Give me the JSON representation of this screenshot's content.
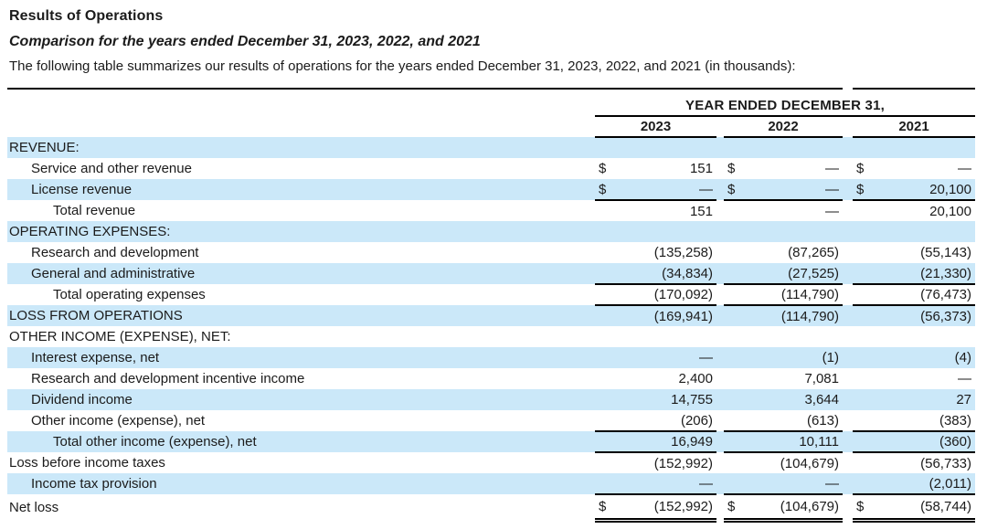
{
  "page": {
    "title": "Results of Operations",
    "subtitle": "Comparison for the years ended December 31, 2023, 2022, and 2021",
    "intro": "The following table summarizes our results of operations for the years ended December 31, 2023, 2022, and 2021 (in thousands):"
  },
  "colors": {
    "row_highlight": "#cbe8f9"
  },
  "table": {
    "group_header": "YEAR ENDED DECEMBER 31,",
    "columns": [
      "2023",
      "2022",
      "2021"
    ],
    "currency_symbol": "$",
    "rows": [
      {
        "label": "REVENUE:",
        "indent": 0,
        "highlight": true,
        "dollar": false,
        "rule": "none",
        "values": [
          "",
          "",
          ""
        ]
      },
      {
        "label": "Service and other revenue",
        "indent": 1,
        "highlight": false,
        "dollar": true,
        "rule": "none",
        "values": [
          "151",
          "—",
          "—"
        ]
      },
      {
        "label": "License revenue",
        "indent": 1,
        "highlight": true,
        "dollar": true,
        "rule": "single",
        "values": [
          "—",
          "—",
          "20,100"
        ]
      },
      {
        "label": "Total revenue",
        "indent": 2,
        "highlight": false,
        "dollar": false,
        "rule": "none",
        "values": [
          "151",
          "—",
          "20,100"
        ]
      },
      {
        "label": "OPERATING EXPENSES:",
        "indent": 0,
        "highlight": true,
        "dollar": false,
        "rule": "none",
        "values": [
          "",
          "",
          ""
        ]
      },
      {
        "label": "Research and development",
        "indent": 1,
        "highlight": false,
        "dollar": false,
        "rule": "none",
        "values": [
          "(135,258)",
          "(87,265)",
          "(55,143)"
        ]
      },
      {
        "label": "General and administrative",
        "indent": 1,
        "highlight": true,
        "dollar": false,
        "rule": "single",
        "values": [
          "(34,834)",
          "(27,525)",
          "(21,330)"
        ]
      },
      {
        "label": "Total operating expenses",
        "indent": 2,
        "highlight": false,
        "dollar": false,
        "rule": "single",
        "values": [
          "(170,092)",
          "(114,790)",
          "(76,473)"
        ]
      },
      {
        "label": "LOSS FROM OPERATIONS",
        "indent": 0,
        "highlight": true,
        "dollar": false,
        "rule": "none",
        "values": [
          "(169,941)",
          "(114,790)",
          "(56,373)"
        ]
      },
      {
        "label": "OTHER INCOME (EXPENSE), NET:",
        "indent": 0,
        "highlight": false,
        "dollar": false,
        "rule": "none",
        "values": [
          "",
          "",
          ""
        ]
      },
      {
        "label": "Interest expense, net",
        "indent": 1,
        "highlight": true,
        "dollar": false,
        "rule": "none",
        "values": [
          "—",
          "(1)",
          "(4)"
        ]
      },
      {
        "label": "Research and development incentive income",
        "indent": 1,
        "highlight": false,
        "dollar": false,
        "rule": "none",
        "values": [
          "2,400",
          "7,081",
          "—"
        ]
      },
      {
        "label": "Dividend income",
        "indent": 1,
        "highlight": true,
        "dollar": false,
        "rule": "none",
        "values": [
          "14,755",
          "3,644",
          "27"
        ]
      },
      {
        "label": "Other income (expense), net",
        "indent": 1,
        "highlight": false,
        "dollar": false,
        "rule": "single",
        "values": [
          "(206)",
          "(613)",
          "(383)"
        ]
      },
      {
        "label": "Total other income (expense), net",
        "indent": 2,
        "highlight": true,
        "dollar": false,
        "rule": "single",
        "values": [
          "16,949",
          "10,111",
          "(360)"
        ]
      },
      {
        "label": "Loss before income taxes",
        "indent": 0,
        "highlight": false,
        "dollar": false,
        "rule": "none",
        "values": [
          "(152,992)",
          "(104,679)",
          "(56,733)"
        ]
      },
      {
        "label": "Income tax provision",
        "indent": 1,
        "highlight": true,
        "dollar": false,
        "rule": "single",
        "values": [
          "—",
          "—",
          "(2,011)"
        ]
      },
      {
        "label": "Net loss",
        "indent": 0,
        "highlight": false,
        "dollar": true,
        "rule": "double",
        "values": [
          "(152,992)",
          "(104,679)",
          "(58,744)"
        ]
      }
    ]
  }
}
